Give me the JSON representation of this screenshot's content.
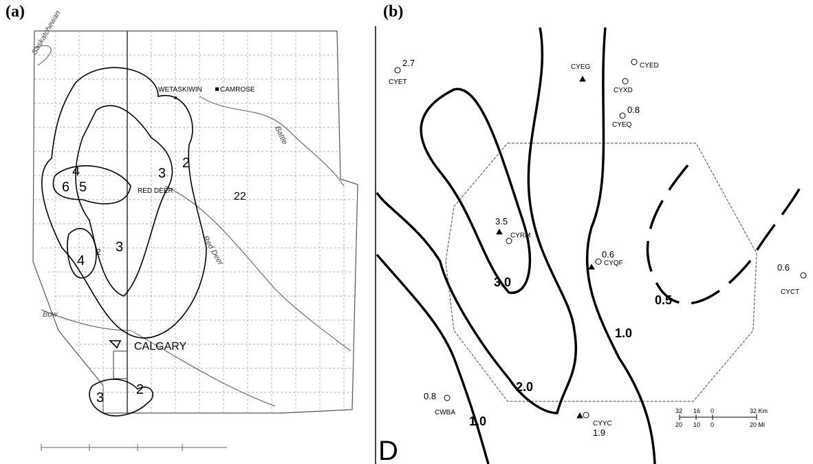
{
  "panels": [
    {
      "label": "(a)",
      "places": [
        "WETASKIWIN",
        "CAMROSE",
        "RED DEER",
        "CALGARY"
      ],
      "rivers": [
        "Saskatchewan",
        "Battle",
        "Red Deer",
        "Bow"
      ],
      "contour_labels": [
        "2",
        "3",
        "4",
        "5",
        "6",
        "4",
        "3",
        "2",
        "2",
        "3",
        "22"
      ]
    },
    {
      "label": "(b)",
      "stations": [
        {
          "name": "CYET",
          "value": "2.7"
        },
        {
          "name": "CYEG",
          "value": null
        },
        {
          "name": "CYED",
          "value": null
        },
        {
          "name": "CYXD",
          "value": null
        },
        {
          "name": "CYEQ",
          "value": "0.8"
        },
        {
          "name": "CYRM",
          "value": "3.5"
        },
        {
          "name": "CYQF",
          "value": "0.6"
        },
        {
          "name": "CYCT",
          "value": "0.6"
        },
        {
          "name": "CWBA",
          "value": "0.8"
        },
        {
          "name": "CYYC",
          "value": "1.9"
        }
      ],
      "contour_labels": [
        "3.0",
        "2.0",
        "1.0",
        "1.0",
        "0.5"
      ],
      "corner_label": "D",
      "scale_km": [
        "32",
        "16",
        "0",
        "32 Km"
      ],
      "scale_mi": [
        "20",
        "10",
        "0",
        "20 Mi"
      ]
    }
  ]
}
